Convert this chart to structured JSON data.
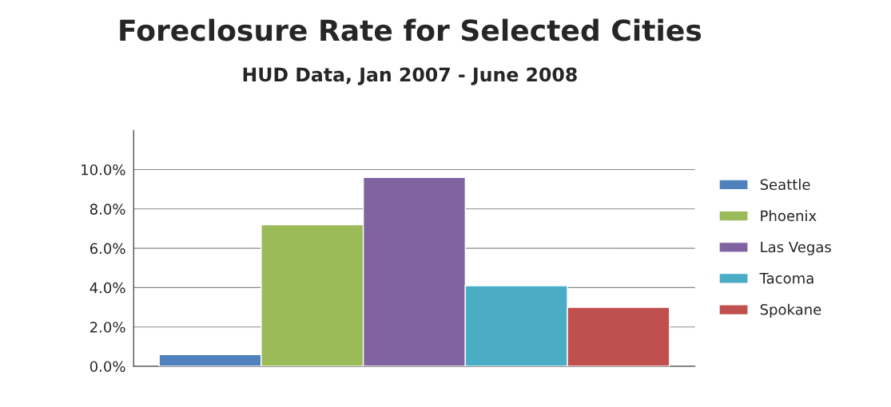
{
  "chart_data": {
    "type": "bar",
    "title": "Foreclosure Rate for Selected Cities",
    "subtitle": "HUD Data, Jan 2007 - June 2008",
    "categories": [
      null
    ],
    "series": [
      {
        "name": "Seattle",
        "color": "#4f81bd",
        "values": [
          0.6
        ]
      },
      {
        "name": "Phoenix",
        "color": "#9bbb59",
        "values": [
          7.2
        ]
      },
      {
        "name": "Las Vegas",
        "color": "#8064a2",
        "values": [
          9.6
        ]
      },
      {
        "name": "Tacoma",
        "color": "#4bacc6",
        "values": [
          4.1
        ]
      },
      {
        "name": "Spokane",
        "color": "#c0504d",
        "values": [
          3.0
        ]
      }
    ],
    "ylim": [
      0,
      12
    ],
    "yticks": [
      {
        "value": 0,
        "label": "0.0%"
      },
      {
        "value": 2,
        "label": "2.0%"
      },
      {
        "value": 4,
        "label": "4.0%"
      },
      {
        "value": 6,
        "label": "6.0%"
      },
      {
        "value": 8,
        "label": "8.0%"
      },
      {
        "value": 10,
        "label": "10.0%"
      }
    ],
    "grid": "y",
    "legend": "right"
  }
}
